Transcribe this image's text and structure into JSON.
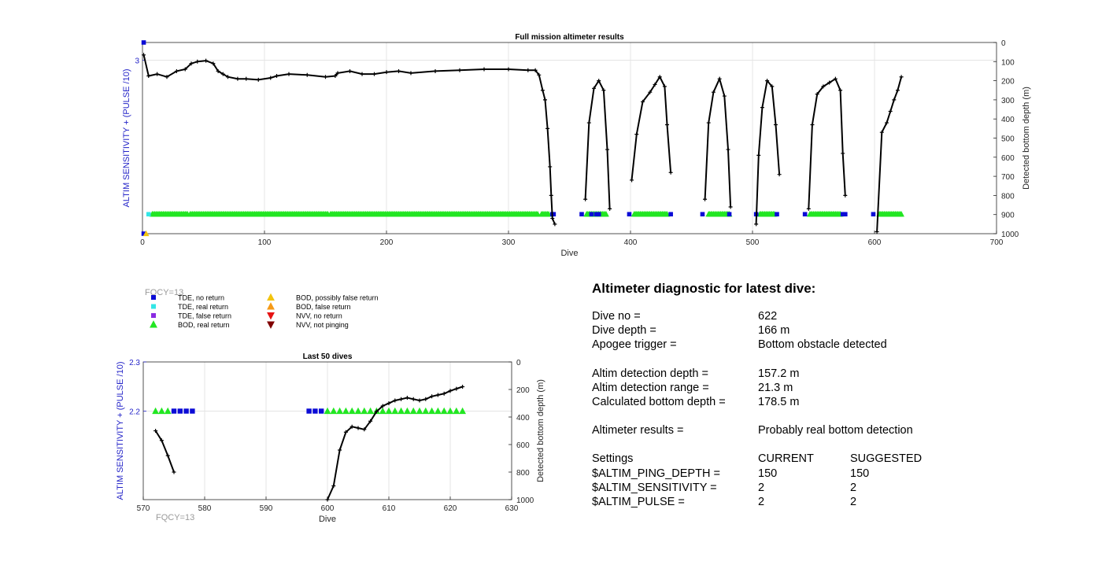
{
  "colors": {
    "tde_no_return": "#0b0bd6",
    "tde_real_return": "#33e6e6",
    "tde_false_return": "#8a2be2",
    "bod_real_return": "#22e622",
    "bod_possibly_false": "#f2c40f",
    "bod_false_return": "#f59a17",
    "nvv_no_return": "#e61414",
    "nvv_not_pinging": "#800000",
    "left_axis": "#2424c8",
    "fqcy_gray": "#9a9a9a"
  },
  "fqcy_labels": {
    "top": "FQCY=13",
    "bottom": "FQCY=13"
  },
  "legend": [
    {
      "label": "TDE, no return",
      "color_key": "tde_no_return",
      "marker": "square"
    },
    {
      "label": "TDE, real return",
      "color_key": "tde_real_return",
      "marker": "square"
    },
    {
      "label": "TDE, false return",
      "color_key": "tde_false_return",
      "marker": "square"
    },
    {
      "label": "BOD, real return",
      "color_key": "bod_real_return",
      "marker": "triangle-up"
    },
    {
      "label": "BOD, possibly false return",
      "color_key": "bod_possibly_false",
      "marker": "triangle-up"
    },
    {
      "label": "BOD, false return",
      "color_key": "bod_false_return",
      "marker": "triangle-up"
    },
    {
      "label": "NVV, no return",
      "color_key": "nvv_no_return",
      "marker": "triangle-down"
    },
    {
      "label": "NVV, not pinging",
      "color_key": "nvv_not_pinging",
      "marker": "triangle-down"
    }
  ],
  "chart_data": [
    {
      "type": "line",
      "title": "Full mission altimeter results",
      "xlabel": "Dive",
      "ylabel_left": "ALTIM SENSITIVITY + (PULSE /10)",
      "ylabel_right": "Detected bottom depth (m)",
      "xlim": [
        0,
        700
      ],
      "xticks": [
        0,
        100,
        200,
        300,
        400,
        500,
        600,
        700
      ],
      "ylim_left": [
        2.02,
        3.1
      ],
      "yticks_left": [
        3
      ],
      "ylim_right": [
        1000,
        0
      ],
      "yticks_right": [
        0,
        100,
        200,
        300,
        400,
        500,
        600,
        700,
        800,
        900,
        1000
      ],
      "grid": true,
      "bottom_depth_segments": [
        [
          [
            1,
            65
          ],
          [
            5,
            175
          ],
          [
            12,
            165
          ],
          [
            20,
            180
          ],
          [
            28,
            150
          ],
          [
            35,
            140
          ],
          [
            40,
            110
          ],
          [
            45,
            100
          ],
          [
            52,
            95
          ],
          [
            58,
            110
          ],
          [
            62,
            150
          ],
          [
            66,
            165
          ],
          [
            70,
            180
          ],
          [
            78,
            190
          ],
          [
            85,
            190
          ],
          [
            95,
            195
          ],
          [
            105,
            185
          ],
          [
            110,
            175
          ],
          [
            120,
            165
          ],
          [
            135,
            170
          ],
          [
            150,
            180
          ],
          [
            158,
            175
          ],
          [
            160,
            160
          ],
          [
            170,
            150
          ],
          [
            180,
            165
          ],
          [
            190,
            165
          ],
          [
            200,
            155
          ],
          [
            210,
            150
          ],
          [
            220,
            160
          ],
          [
            240,
            150
          ],
          [
            260,
            145
          ],
          [
            280,
            140
          ],
          [
            300,
            140
          ],
          [
            316,
            145
          ],
          [
            322,
            145
          ],
          [
            325,
            170
          ],
          [
            328,
            250
          ],
          [
            330,
            300
          ],
          [
            332,
            450
          ],
          [
            334,
            650
          ],
          [
            335,
            800
          ],
          [
            336,
            920
          ],
          [
            338,
            950
          ]
        ],
        [
          [
            363,
            820
          ],
          [
            366,
            420
          ],
          [
            370,
            240
          ],
          [
            374,
            200
          ],
          [
            378,
            250
          ],
          [
            381,
            560
          ],
          [
            383,
            870
          ]
        ],
        [
          [
            401,
            720
          ],
          [
            405,
            480
          ],
          [
            410,
            310
          ],
          [
            416,
            260
          ],
          [
            420,
            220
          ],
          [
            424,
            180
          ],
          [
            428,
            230
          ],
          [
            430,
            430
          ],
          [
            433,
            680
          ]
        ],
        [
          [
            461,
            820
          ],
          [
            464,
            420
          ],
          [
            468,
            260
          ],
          [
            473,
            190
          ],
          [
            477,
            280
          ],
          [
            480,
            560
          ],
          [
            482,
            860
          ]
        ],
        [
          [
            503,
            950
          ],
          [
            505,
            590
          ],
          [
            508,
            340
          ],
          [
            512,
            200
          ],
          [
            516,
            230
          ],
          [
            519,
            430
          ],
          [
            522,
            690
          ]
        ],
        [
          [
            546,
            870
          ],
          [
            549,
            430
          ],
          [
            553,
            270
          ],
          [
            558,
            230
          ],
          [
            563,
            210
          ],
          [
            568,
            190
          ],
          [
            572,
            250
          ],
          [
            574,
            580
          ],
          [
            576,
            800
          ]
        ],
        [
          [
            602,
            990
          ],
          [
            606,
            470
          ],
          [
            610,
            420
          ],
          [
            613,
            360
          ],
          [
            616,
            300
          ],
          [
            619,
            250
          ],
          [
            622,
            180
          ]
        ]
      ],
      "tde_no_return_points": [
        [
          1,
          3.1
        ],
        [
          1,
          2.02
        ],
        [
          336,
          2.13
        ],
        [
          337,
          2.13
        ],
        [
          360,
          2.13
        ],
        [
          368,
          2.13
        ],
        [
          372,
          2.13
        ],
        [
          374,
          2.13
        ],
        [
          399,
          2.13
        ],
        [
          433,
          2.13
        ],
        [
          459,
          2.13
        ],
        [
          481,
          2.13
        ],
        [
          503,
          2.13
        ],
        [
          520,
          2.13
        ],
        [
          543,
          2.13
        ],
        [
          574,
          2.13
        ],
        [
          576,
          2.13
        ],
        [
          599,
          2.13
        ]
      ],
      "tde_real_return_points": [
        [
          5,
          2.13
        ]
      ],
      "bod_real_return_segments": [
        [
          8,
          37
        ],
        [
          39,
          152
        ],
        [
          154,
          324
        ],
        [
          327,
          333
        ],
        [
          364,
          380
        ],
        [
          403,
          430
        ],
        [
          464,
          481
        ],
        [
          506,
          518
        ],
        [
          547,
          572
        ],
        [
          604,
          622
        ]
      ],
      "bod_possibly_false_points": [
        [
          3,
          2.02
        ]
      ]
    },
    {
      "type": "line",
      "title": "Last 50 dives",
      "xlabel": "Dive",
      "ylabel_left": "ALTIM SENSITIVITY + (PULSE /10)",
      "ylabel_right": "Detected bottom depth (m)",
      "xlim": [
        570,
        630
      ],
      "xticks": [
        570,
        580,
        590,
        600,
        610,
        620,
        630
      ],
      "ylim_left": [
        2.02,
        2.3
      ],
      "yticks_left": [
        2.2,
        2.3
      ],
      "ylim_right": [
        1000,
        0
      ],
      "yticks_right": [
        0,
        200,
        400,
        600,
        800,
        1000
      ],
      "grid": true,
      "bottom_depth_segments": [
        [
          [
            572,
            500
          ],
          [
            573,
            570
          ],
          [
            574,
            680
          ],
          [
            575,
            800
          ]
        ],
        [
          [
            600,
            1000
          ],
          [
            601,
            900
          ],
          [
            602,
            640
          ],
          [
            603,
            510
          ],
          [
            604,
            470
          ],
          [
            605,
            480
          ],
          [
            606,
            490
          ],
          [
            607,
            430
          ],
          [
            608,
            360
          ],
          [
            609,
            320
          ],
          [
            610,
            300
          ],
          [
            611,
            280
          ],
          [
            612,
            270
          ],
          [
            613,
            260
          ],
          [
            614,
            270
          ],
          [
            615,
            280
          ],
          [
            616,
            270
          ],
          [
            617,
            250
          ],
          [
            618,
            240
          ],
          [
            619,
            230
          ],
          [
            620,
            210
          ],
          [
            621,
            195
          ],
          [
            622,
            180
          ]
        ]
      ],
      "tde_no_return_points": [
        [
          575,
          2.2
        ],
        [
          576,
          2.2
        ],
        [
          577,
          2.2
        ],
        [
          578,
          2.2
        ],
        [
          597,
          2.2
        ],
        [
          598,
          2.2
        ],
        [
          599,
          2.2
        ]
      ],
      "bod_real_return_points": [
        [
          572,
          2.2
        ],
        [
          573,
          2.2
        ],
        [
          574,
          2.2
        ],
        [
          600,
          2.2
        ],
        [
          601,
          2.2
        ],
        [
          602,
          2.2
        ],
        [
          603,
          2.2
        ],
        [
          604,
          2.2
        ],
        [
          605,
          2.2
        ],
        [
          606,
          2.2
        ],
        [
          607,
          2.2
        ],
        [
          608,
          2.2
        ],
        [
          609,
          2.2
        ],
        [
          610,
          2.2
        ],
        [
          611,
          2.2
        ],
        [
          612,
          2.2
        ],
        [
          613,
          2.2
        ],
        [
          614,
          2.2
        ],
        [
          615,
          2.2
        ],
        [
          616,
          2.2
        ],
        [
          617,
          2.2
        ],
        [
          618,
          2.2
        ],
        [
          619,
          2.2
        ],
        [
          620,
          2.2
        ],
        [
          621,
          2.2
        ],
        [
          622,
          2.2
        ]
      ]
    }
  ],
  "diagnostic": {
    "title": "Altimeter diagnostic for latest dive:",
    "dive_no_label": "Dive no =",
    "dive_no_value": "622",
    "dive_depth_label": "Dive depth =",
    "dive_depth_value": "166 m",
    "apogee_label": "Apogee trigger =",
    "apogee_value": "Bottom obstacle detected",
    "altim_detect_depth_label": "Altim detection depth =",
    "altim_detect_depth_value": "157.2 m",
    "altim_detect_range_label": "Altim detection range =",
    "altim_detect_range_value": "21.3 m",
    "calc_bottom_label": "Calculated bottom depth =",
    "calc_bottom_value": "178.5 m",
    "results_label": "Altimeter results =",
    "results_value": "Probably real bottom detection",
    "settings_label": "Settings",
    "current_label": "CURRENT",
    "suggested_label": "SUGGESTED",
    "ping_depth_label": "$ALTIM_PING_DEPTH =",
    "ping_depth_current": "150",
    "ping_depth_suggested": "150",
    "sensitivity_label": "$ALTIM_SENSITIVITY =",
    "sensitivity_current": "2",
    "sensitivity_suggested": "2",
    "pulse_label": "$ALTIM_PULSE =",
    "pulse_current": "2",
    "pulse_suggested": "2"
  }
}
